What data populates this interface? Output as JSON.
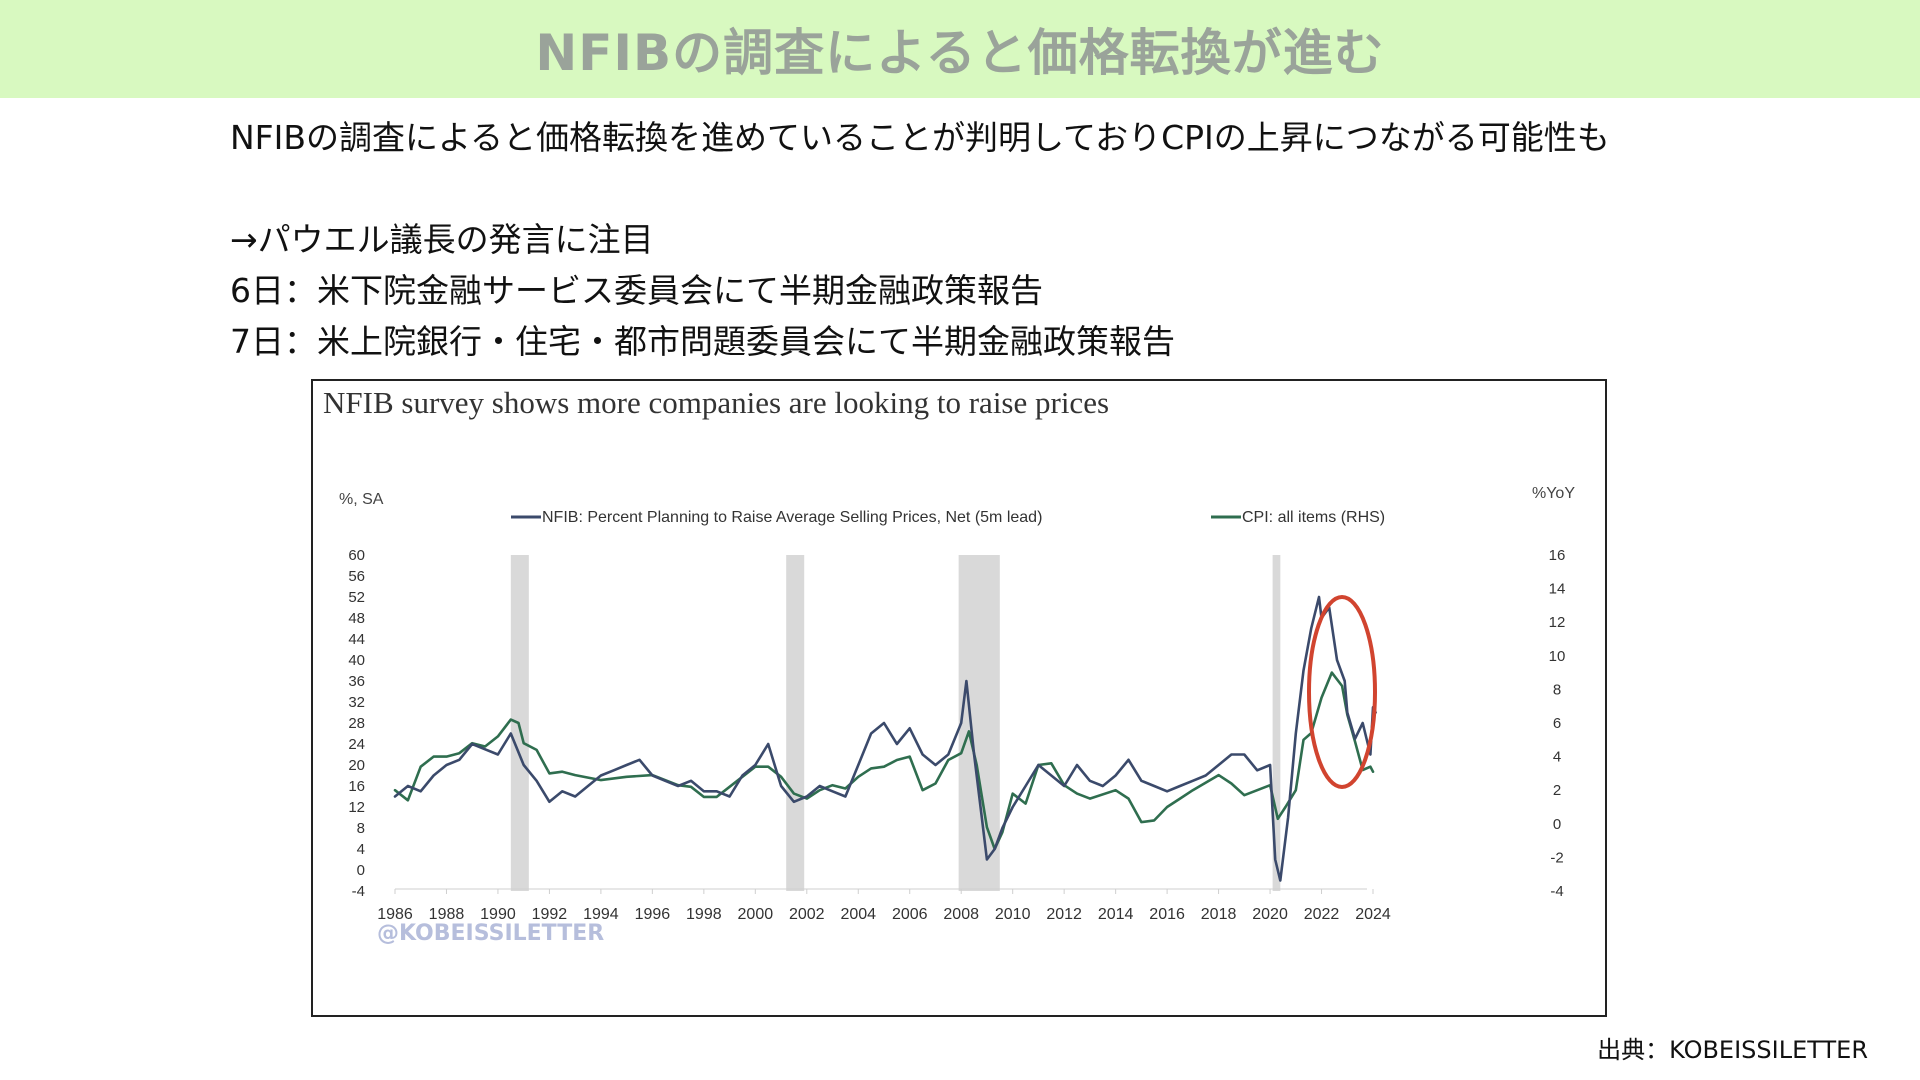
{
  "header": {
    "title": "NFIBの調査によると価格転換が進む"
  },
  "body": {
    "line1": "NFIBの調査によると価格転換を進めていることが判明しておりCPIの上昇につながる可能性も",
    "line2": "→パウエル議長の発言に注目",
    "line3": "6日：米下院金融サービス委員会にて半期金融政策報告",
    "line4": "7日：米上院銀行・住宅・都市問題委員会にて半期金融政策報告"
  },
  "source": "出典：KOBEISSILETTER",
  "colors": {
    "title_band": "#d8f9c0",
    "nfib": "#3b4a6b",
    "cpi": "#2f6e4f",
    "recession": "#d9d9d9",
    "circle": "#d1442f"
  },
  "chart_data": {
    "type": "line",
    "title": "NFIB survey shows more companies are looking to raise prices",
    "watermark": "@KOBEISSILETTER",
    "left_axis_label": "%, SA",
    "right_axis_label": "%YoY",
    "left_ticks": [
      "60",
      "56",
      "52",
      "48",
      "44",
      "40",
      "36",
      "32",
      "28",
      "24",
      "20",
      "16",
      "12",
      "8",
      "4",
      "0",
      "-4"
    ],
    "right_ticks": [
      "16",
      "14",
      "12",
      "10",
      "8",
      "6",
      "4",
      "2",
      "0",
      "-2",
      "-4"
    ],
    "x_ticks": [
      "1986",
      "1988",
      "1990",
      "1992",
      "1994",
      "1996",
      "1998",
      "2000",
      "2002",
      "2004",
      "2006",
      "2008",
      "2010",
      "2012",
      "2014",
      "2016",
      "2018",
      "2020",
      "2022",
      "2024"
    ],
    "xlim": [
      1986,
      2024
    ],
    "ylim_left": [
      -4,
      60
    ],
    "ylim_right": [
      -4,
      16
    ],
    "legend_placement": "top",
    "recessions": [
      [
        1990.5,
        1991.2
      ],
      [
        2001.2,
        2001.9
      ],
      [
        2007.9,
        2009.5
      ],
      [
        2020.1,
        2020.4
      ]
    ],
    "series": [
      {
        "name": "NFIB: Percent Planning to Raise Average Selling Prices, Net (5m lead)",
        "axis": "left",
        "x": [
          1986,
          1986.5,
          1987,
          1987.5,
          1988,
          1988.5,
          1989,
          1989.5,
          1990,
          1990.5,
          1991,
          1991.5,
          1992,
          1992.5,
          1993,
          1993.5,
          1994,
          1994.5,
          1995,
          1995.5,
          1996,
          1996.5,
          1997,
          1997.5,
          1998,
          1998.5,
          1999,
          1999.5,
          2000,
          2000.5,
          2001,
          2001.5,
          2002,
          2002.5,
          2003,
          2003.5,
          2004,
          2004.5,
          2005,
          2005.5,
          2006,
          2006.5,
          2007,
          2007.5,
          2008,
          2008.2,
          2008.5,
          2008.8,
          2009,
          2009.3,
          2009.6,
          2010,
          2010.5,
          2011,
          2011.5,
          2012,
          2012.5,
          2013,
          2013.5,
          2014,
          2014.5,
          2015,
          2015.5,
          2016,
          2016.5,
          2017,
          2017.5,
          2018,
          2018.5,
          2019,
          2019.5,
          2020,
          2020.2,
          2020.4,
          2020.7,
          2021,
          2021.3,
          2021.6,
          2021.9,
          2022,
          2022.3,
          2022.6,
          2022.9,
          2023,
          2023.3,
          2023.6,
          2023.9,
          2024,
          2024.1
        ],
        "y": [
          14,
          16,
          15,
          18,
          20,
          21,
          24,
          23,
          22,
          26,
          20,
          17,
          13,
          15,
          14,
          16,
          18,
          19,
          20,
          21,
          18,
          17,
          16,
          17,
          15,
          15,
          14,
          18,
          20,
          24,
          16,
          13,
          14,
          16,
          15,
          14,
          20,
          26,
          28,
          24,
          27,
          22,
          20,
          22,
          28,
          36,
          22,
          10,
          2,
          4,
          8,
          12,
          16,
          20,
          18,
          16,
          20,
          17,
          16,
          18,
          21,
          17,
          16,
          15,
          16,
          17,
          18,
          20,
          22,
          22,
          19,
          20,
          2,
          -2,
          10,
          26,
          38,
          46,
          52,
          48,
          50,
          40,
          36,
          30,
          25,
          28,
          22,
          31,
          30
        ]
      },
      {
        "name": "CPI: all items (RHS)",
        "axis": "right",
        "x": [
          1986,
          1986.5,
          1987,
          1987.5,
          1988,
          1988.5,
          1989,
          1989.5,
          1990,
          1990.5,
          1990.8,
          1991,
          1991.5,
          1992,
          1992.5,
          1993,
          1994,
          1995,
          1996,
          1997,
          1997.5,
          1998,
          1998.5,
          1999,
          2000,
          2000.5,
          2001,
          2001.5,
          2002,
          2002.5,
          2003,
          2003.5,
          2004,
          2004.5,
          2005,
          2005.5,
          2006,
          2006.5,
          2007,
          2007.5,
          2008,
          2008.3,
          2008.6,
          2009,
          2009.3,
          2009.6,
          2010,
          2010.5,
          2011,
          2011.5,
          2012,
          2012.5,
          2013,
          2014,
          2014.5,
          2015,
          2015.5,
          2016,
          2016.5,
          2017,
          2018,
          2018.5,
          2019,
          2019.5,
          2020,
          2020.3,
          2020.6,
          2021,
          2021.3,
          2021.6,
          2022,
          2022.4,
          2022.8,
          2023,
          2023.3,
          2023.6,
          2023.9,
          2024
        ],
        "y": [
          2.0,
          1.4,
          3.4,
          4.0,
          4.0,
          4.2,
          4.8,
          4.6,
          5.2,
          6.2,
          6.0,
          4.8,
          4.4,
          3.0,
          3.1,
          2.9,
          2.6,
          2.8,
          2.9,
          2.3,
          2.2,
          1.6,
          1.6,
          2.2,
          3.4,
          3.4,
          2.8,
          1.8,
          1.5,
          2.0,
          2.3,
          2.1,
          2.8,
          3.3,
          3.4,
          3.8,
          4.0,
          2.0,
          2.4,
          3.8,
          4.2,
          5.5,
          3.5,
          -0.2,
          -1.5,
          -0.5,
          1.8,
          1.2,
          3.5,
          3.6,
          2.3,
          1.8,
          1.5,
          2.0,
          1.5,
          0.1,
          0.2,
          1.0,
          1.5,
          2.0,
          2.9,
          2.4,
          1.7,
          2.0,
          2.3,
          0.3,
          1.0,
          2.0,
          5.0,
          5.4,
          7.5,
          9.0,
          8.2,
          6.5,
          4.9,
          3.2,
          3.4,
          3.1
        ]
      }
    ]
  }
}
